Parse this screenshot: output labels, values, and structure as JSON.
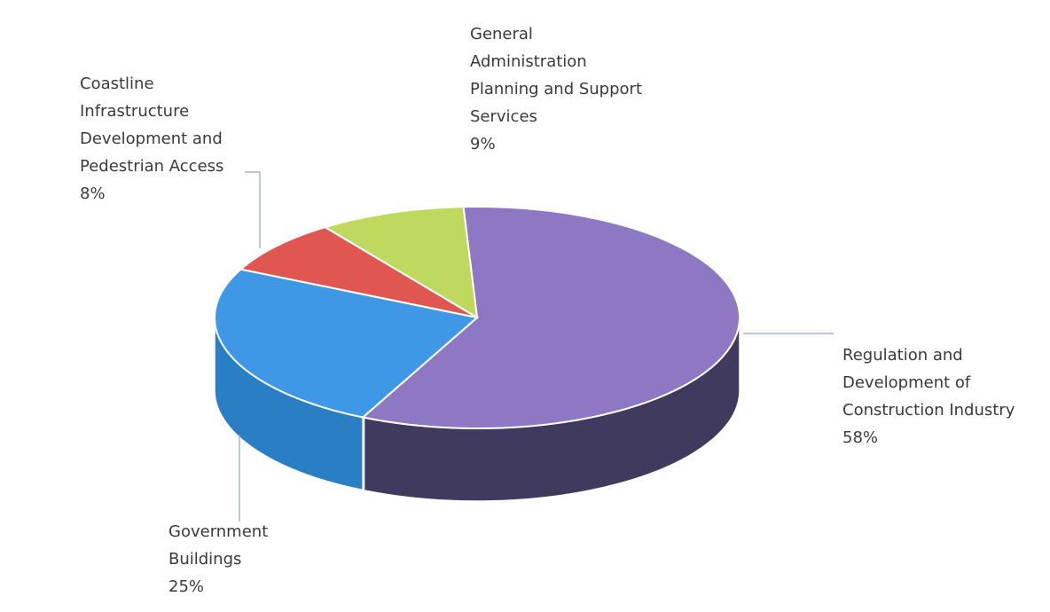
{
  "chart_data": {
    "type": "pie",
    "style": "3d",
    "title": "",
    "legend": "none",
    "slices": [
      {
        "label": [
          "Regulation and",
          "Development of",
          "Construction Industry"
        ],
        "percent_label": "58%",
        "value": 58,
        "color": "#8e78c4",
        "side_color": "#3f3a5e"
      },
      {
        "label": [
          "Government",
          "Buildings"
        ],
        "percent_label": "25%",
        "value": 25,
        "color": "#3f98e6",
        "side_color": "#2a7fc4"
      },
      {
        "label": [
          "Coastline",
          "Infrastructure",
          "Development and",
          "Pedestrian Access"
        ],
        "percent_label": "8%",
        "value": 8,
        "color": "#e05752",
        "side_color": "#b8413d"
      },
      {
        "label": [
          "General",
          "Administration",
          "Planning and Support",
          "Services"
        ],
        "percent_label": "9%",
        "value": 9,
        "color": "#bfd95e",
        "side_color": "#98b144"
      }
    ]
  }
}
